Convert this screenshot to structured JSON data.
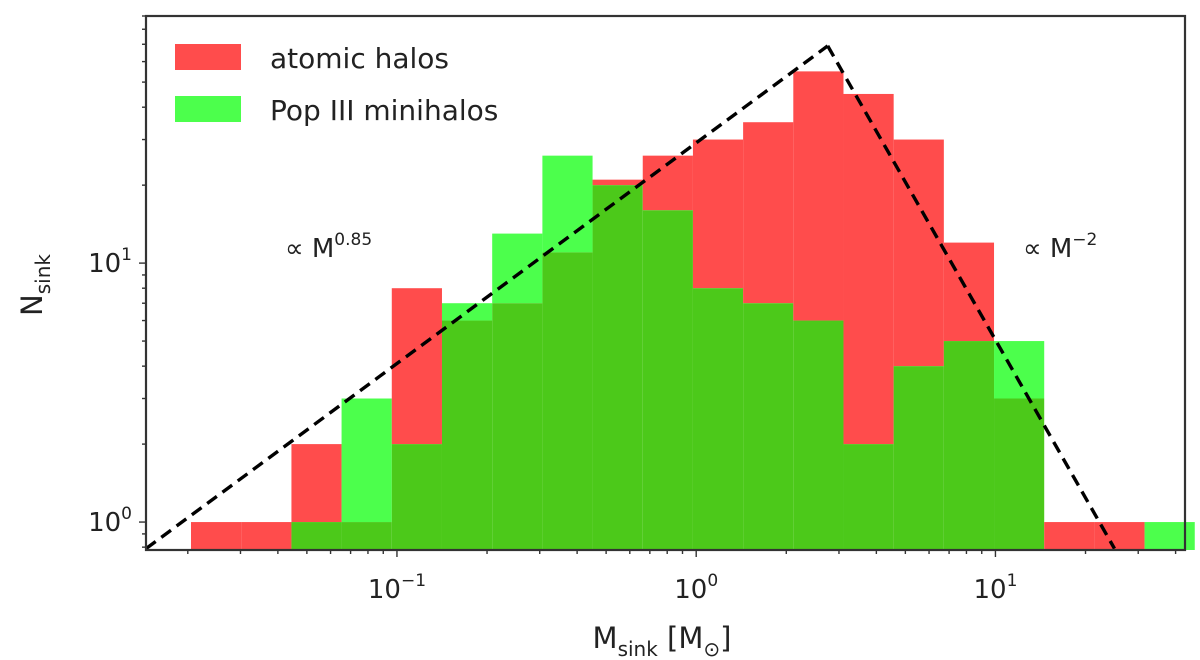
{
  "chart_data": {
    "type": "bar",
    "title": "",
    "xlabel": {
      "main": "M",
      "sub": "sink",
      "unit_open": " [M",
      "unit_sub": "⊙",
      "unit_close": "]"
    },
    "ylabel": {
      "main": "N",
      "sub": "sink"
    },
    "xscale": "log",
    "yscale": "log",
    "xlim": [
      0.0145,
      43
    ],
    "ylim": [
      0.78,
      90
    ],
    "grid": false,
    "legend_position": "top-left",
    "x_ticks": [
      {
        "value": 0.1,
        "base": "10",
        "exp": "−1"
      },
      {
        "value": 1,
        "base": "10",
        "exp": "0"
      },
      {
        "value": 10,
        "base": "10",
        "exp": "1"
      }
    ],
    "y_ticks": [
      {
        "value": 1,
        "base": "10",
        "exp": "0"
      },
      {
        "value": 10,
        "base": "10",
        "exp": "1"
      }
    ],
    "bin_edges": [
      0.0205,
      0.0302,
      0.0444,
      0.0653,
      0.0961,
      0.1414,
      0.2081,
      0.3062,
      0.4505,
      0.6628,
      0.9752,
      1.4348,
      2.111,
      3.1059,
      4.5697,
      6.7234,
      9.8921,
      14.554,
      21.413,
      31.505,
      46.353
    ],
    "series": [
      {
        "name": "atomic halos",
        "color": "#ff4c4c",
        "values": [
          1,
          1,
          2,
          1,
          8,
          6,
          7,
          11,
          21,
          26,
          30,
          35,
          55,
          45,
          30,
          12,
          3,
          1,
          1,
          0
        ]
      },
      {
        "name": "Pop III minihalos",
        "color": "#4cff4c",
        "values": [
          0,
          0,
          1,
          3,
          2,
          7,
          13,
          26,
          20,
          16,
          8,
          7,
          6,
          2,
          4,
          5,
          5,
          0,
          0,
          1
        ]
      }
    ],
    "overlap_color": "#4cc91a",
    "power_law_fits": [
      {
        "label": "∝ M",
        "exponent": "0.85",
        "points": [
          [
            0.0145,
            0.79
          ],
          [
            2.75,
            69
          ]
        ]
      },
      {
        "label": "∝ M",
        "exponent": "−2",
        "points": [
          [
            2.75,
            69
          ],
          [
            25.0,
            0.79
          ]
        ]
      }
    ]
  }
}
